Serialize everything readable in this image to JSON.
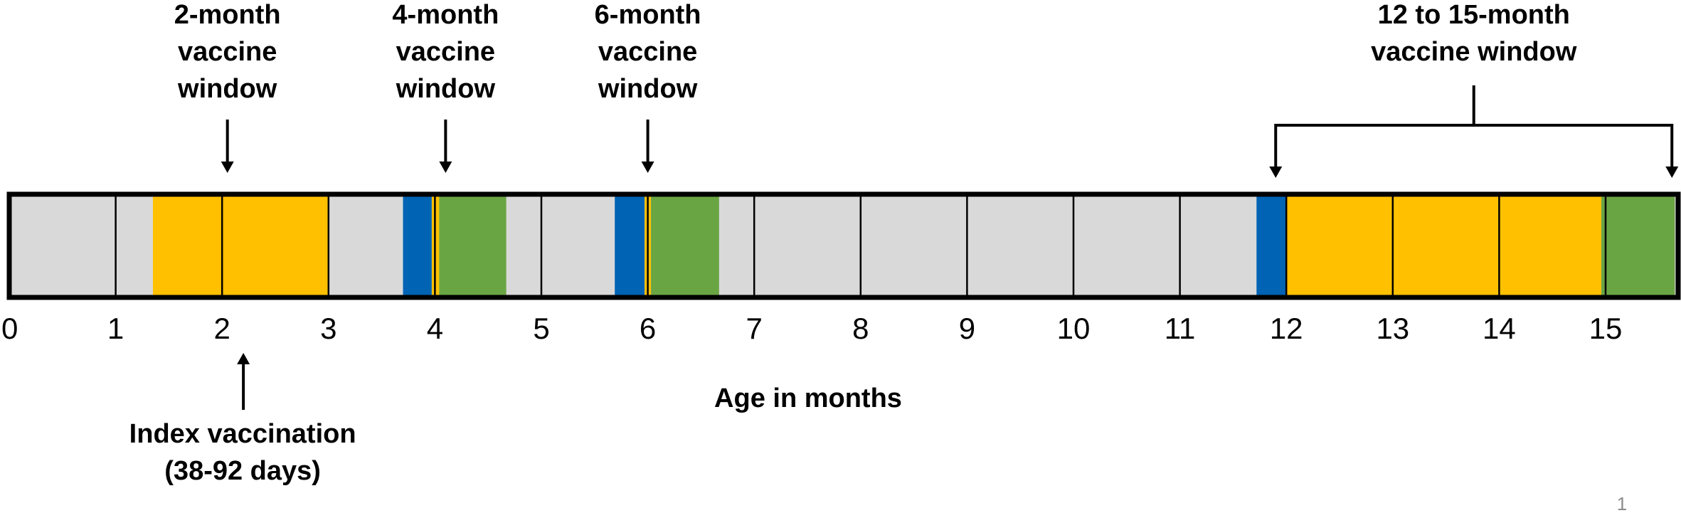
{
  "axis": {
    "title": "Age in months",
    "ticks": [
      "0",
      "1",
      "2",
      "3",
      "4",
      "5",
      "6",
      "7",
      "8",
      "9",
      "10",
      "11",
      "12",
      "13",
      "14",
      "15"
    ],
    "range_months": [
      0,
      15.65
    ]
  },
  "colors": {
    "background_band": "#d9d9d9",
    "orange": "#ffc000",
    "blue": "#0063b4",
    "green": "#6aa544",
    "border": "#000000",
    "arrow": "#000000",
    "page_number": "#8c8c8c"
  },
  "segments": [
    {
      "start": 1.35,
      "end": 3.0,
      "color": "orange"
    },
    {
      "start": 3.7,
      "end": 3.97,
      "color": "blue"
    },
    {
      "start": 3.97,
      "end": 4.04,
      "color": "orange"
    },
    {
      "start": 4.04,
      "end": 4.67,
      "color": "green"
    },
    {
      "start": 5.69,
      "end": 5.97,
      "color": "blue"
    },
    {
      "start": 5.97,
      "end": 6.03,
      "color": "orange"
    },
    {
      "start": 6.03,
      "end": 6.67,
      "color": "green"
    },
    {
      "start": 11.72,
      "end": 12.0,
      "color": "blue"
    },
    {
      "start": 12.0,
      "end": 14.96,
      "color": "orange"
    },
    {
      "start": 14.96,
      "end": 15.65,
      "color": "green"
    }
  ],
  "windows": [
    {
      "lines": [
        "2-month",
        "vaccine",
        "window"
      ],
      "month": 2.05
    },
    {
      "lines": [
        "4-month",
        "vaccine",
        "window"
      ],
      "month": 4.1
    },
    {
      "lines": [
        "6-month",
        "vaccine",
        "window"
      ],
      "month": 6.0
    }
  ],
  "bracket_window": {
    "lines": [
      "12 to 15-month",
      "vaccine window"
    ],
    "start_month": 11.9,
    "end_month": 15.65
  },
  "index_vaccination": {
    "lines": [
      "Index vaccination",
      "(38-92 days)"
    ],
    "month": 2.2
  },
  "page_number": "1"
}
